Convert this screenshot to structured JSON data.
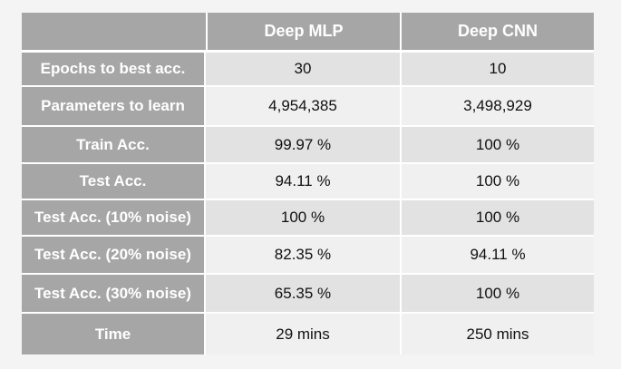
{
  "table": {
    "header": [
      "",
      "Deep MLP",
      "Deep CNN"
    ],
    "rows": [
      {
        "label": "Epochs to best acc.",
        "mlp": "30",
        "cnn": "10"
      },
      {
        "label": "Parameters to learn",
        "mlp": "4,954,385",
        "cnn": "3,498,929"
      },
      {
        "label": "Train Acc.",
        "mlp": "99.97 %",
        "cnn": "100 %"
      },
      {
        "label": "Test Acc.",
        "mlp": "94.11 %",
        "cnn": "100 %"
      },
      {
        "label": "Test Acc. (10% noise)",
        "mlp": "100 %",
        "cnn": "100 %"
      },
      {
        "label": "Test Acc. (20% noise)",
        "mlp": "82.35 %",
        "cnn": "94.11 %"
      },
      {
        "label": "Test Acc. (30% noise)",
        "mlp": "65.35 %",
        "cnn": "100 %"
      },
      {
        "label": "Time",
        "mlp": "29 mins",
        "cnn": "250 mins"
      }
    ]
  },
  "colors": {
    "header_bg": "#a6a6a6",
    "row_odd_bg": "#e2e2e2",
    "row_even_bg": "#f0f0f0",
    "page_bg": "#f4f4f4"
  }
}
